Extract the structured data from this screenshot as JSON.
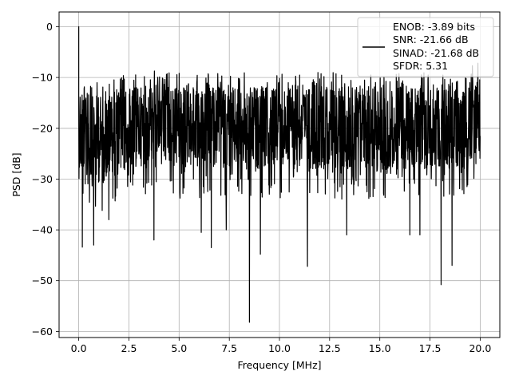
{
  "chart_data": {
    "type": "line",
    "xlabel": "Frequency [MHz]",
    "ylabel": "PSD [dB]",
    "xlim": [
      -0.98,
      20.98
    ],
    "ylim": [
      -61.2,
      2.9
    ],
    "xticks": [
      0.0,
      2.5,
      5.0,
      7.5,
      10.0,
      12.5,
      15.0,
      17.5,
      20.0
    ],
    "xtick_labels": [
      "0.0",
      "2.5",
      "5.0",
      "7.5",
      "10.0",
      "12.5",
      "15.0",
      "17.5",
      "20.0"
    ],
    "yticks": [
      0,
      -10,
      -20,
      -30,
      -40,
      -50,
      -60
    ],
    "ytick_labels": [
      "0",
      "−10",
      "−20",
      "−30",
      "−40",
      "−50",
      "−60"
    ],
    "grid": true,
    "legend_placement": "upper-right",
    "series": [
      {
        "name": "ENOB: -3.89 bits\nSNR: -21.66 dB\nSINAD: -21.68 dB\nSFDR: 5.31",
        "color": "#000000",
        "peak": {
          "x": 0.0,
          "y": 0.0
        },
        "band": {
          "typical_top": -12,
          "typical_bottom": -28
        },
        "dips": [
          {
            "x": 0.18,
            "y": -43.4
          },
          {
            "x": 0.75,
            "y": -43.0
          },
          {
            "x": 1.5,
            "y": -38.0
          },
          {
            "x": 3.75,
            "y": -42.0
          },
          {
            "x": 6.1,
            "y": -40.5
          },
          {
            "x": 6.6,
            "y": -43.5
          },
          {
            "x": 7.35,
            "y": -40.0
          },
          {
            "x": 8.5,
            "y": -58.2
          },
          {
            "x": 9.05,
            "y": -44.8
          },
          {
            "x": 11.4,
            "y": -47.2
          },
          {
            "x": 13.35,
            "y": -41.0
          },
          {
            "x": 16.5,
            "y": -41.0
          },
          {
            "x": 17.0,
            "y": -41.0
          },
          {
            "x": 18.05,
            "y": -50.8
          },
          {
            "x": 18.6,
            "y": -47.0
          }
        ]
      }
    ],
    "legend_lines": [
      "ENOB: -3.89 bits",
      "SNR: -21.66 dB",
      "SINAD: -21.68 dB",
      "SFDR: 5.31"
    ]
  }
}
